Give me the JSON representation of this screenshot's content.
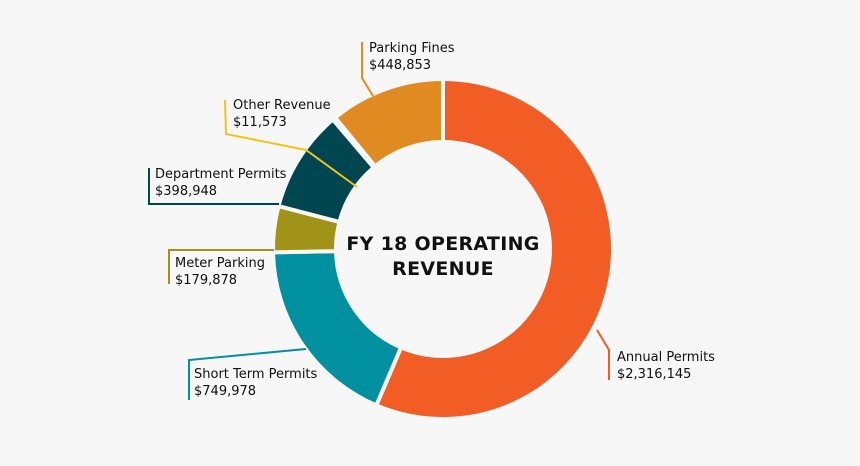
{
  "chart_data": {
    "type": "pie",
    "donut": true,
    "title": "FY 18 OPERATING REVENUE",
    "start": "top",
    "direction": "clockwise",
    "slices": [
      {
        "label": "Annual Permits",
        "value": 2316145,
        "value_text": "$2,316,145",
        "color": "#f15d24"
      },
      {
        "label": "Short Term Permits",
        "value": 749978,
        "value_text": "$749,978",
        "color": "#00909f"
      },
      {
        "label": "Meter Parking",
        "value": 179878,
        "value_text": "$179,878",
        "color": "#a09318"
      },
      {
        "label": "Department Permits",
        "value": 398948,
        "value_text": "$398,948",
        "color": "#004650"
      },
      {
        "label": "Other Revenue",
        "value": 11573,
        "value_text": "$11,573",
        "color": "#f5c318"
      },
      {
        "label": "Parking Fines",
        "value": 448853,
        "value_text": "$448,853",
        "color": "#e08b22"
      }
    ]
  }
}
